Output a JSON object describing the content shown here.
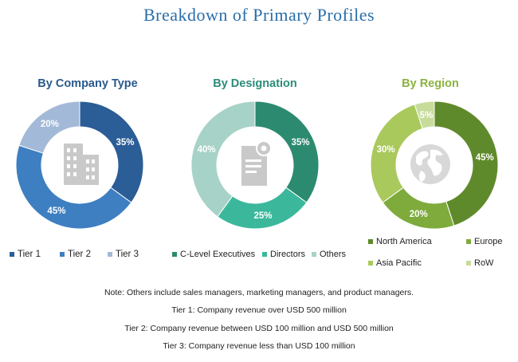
{
  "title": "Breakdown of Primary Profiles",
  "chart_data": [
    {
      "type": "pie",
      "variant": "donut",
      "title": "By Company Type",
      "title_color": "#2a5a8c",
      "labels": [
        "Tier 1",
        "Tier 2",
        "Tier 3"
      ],
      "values": [
        35,
        45,
        20
      ],
      "value_labels": [
        "35%",
        "45%",
        "20%"
      ],
      "colors": [
        "#2b5d97",
        "#3d7fc1",
        "#a3b9d8"
      ],
      "center_icon": "office-building-icon",
      "legend_position": "bottom"
    },
    {
      "type": "pie",
      "variant": "donut",
      "title": "By Designation",
      "title_color": "#2b8c7a",
      "labels": [
        "C-Level Executives",
        "Directors",
        "Others"
      ],
      "values": [
        35,
        25,
        40
      ],
      "value_labels": [
        "35%",
        "25%",
        "40%"
      ],
      "colors": [
        "#2b8a70",
        "#3bb89c",
        "#a7d2c8"
      ],
      "center_icon": "document-badge-icon",
      "legend_position": "bottom"
    },
    {
      "type": "pie",
      "variant": "donut",
      "title": "By Region",
      "title_color": "#8ab33c",
      "labels": [
        "North America",
        "Europe",
        "Asia Pacific",
        "RoW"
      ],
      "values": [
        45,
        20,
        30,
        5
      ],
      "value_labels": [
        "45%",
        "20%",
        "30%",
        "5%"
      ],
      "colors": [
        "#5f8a2b",
        "#7eab3c",
        "#a9c95c",
        "#c7dc9a"
      ],
      "center_icon": "globe-icon",
      "legend_position": "bottom"
    }
  ],
  "notes": [
    "Note: Others include sales managers, marketing managers, and product managers.",
    "Tier 1: Company revenue over USD 500 million",
    "Tier 2: Company revenue between USD 100 million and USD 500 million",
    "Tier 3: Company revenue less than USD 100 million"
  ]
}
